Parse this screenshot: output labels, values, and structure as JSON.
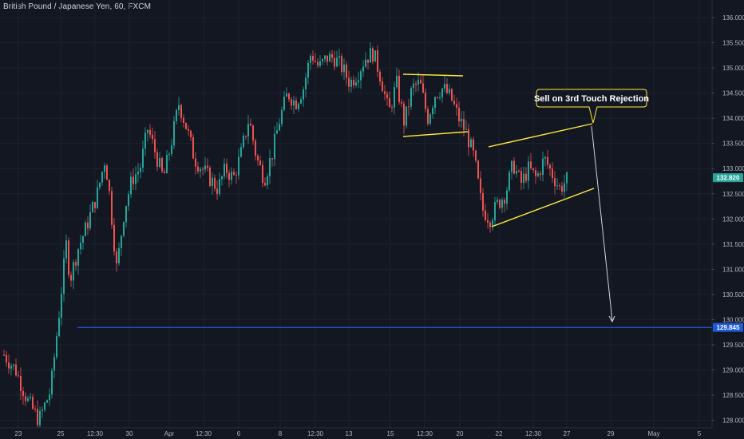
{
  "header": {
    "symbol_title": "British Pound / Japanese Yen, 60, FXCM"
  },
  "colors": {
    "background": "#131722",
    "grid": "#1e2230",
    "axis_text": "#b2b5be",
    "candle_up": "#26a69a",
    "candle_down": "#ef5350",
    "trendline": "#ffeb3b",
    "target_line": "#2962ff",
    "target_badge": "#1e5bd8",
    "last_price_badge": "#26a69a",
    "arrow": "#d1d4dc",
    "callout_bg": "#131722",
    "callout_border": "#ffeb3b"
  },
  "chart_data": {
    "type": "candlestick",
    "ylim": [
      127.85,
      136.35
    ],
    "y_ticks": [
      "136.000",
      "135.500",
      "135.000",
      "134.500",
      "134.000",
      "133.500",
      "133.000",
      "132.500",
      "132.000",
      "131.500",
      "131.000",
      "130.500",
      "130.000",
      "129.500",
      "129.000",
      "128.500",
      "128.000"
    ],
    "x_ticks": [
      "23",
      "25",
      "12:30",
      "30",
      "Apr",
      "12:30",
      "6",
      "8",
      "12:30",
      "13",
      "15",
      "12:30",
      "20",
      "22",
      "12:30",
      "27",
      "29",
      "May",
      "5"
    ],
    "last_price": "132.820",
    "target_price": "129.845",
    "price_path": [
      [
        0,
        129.3
      ],
      [
        3,
        129.0
      ],
      [
        6,
        128.4
      ],
      [
        9,
        128.0
      ],
      [
        12,
        128.6
      ],
      [
        14,
        130.0
      ],
      [
        16,
        131.5
      ],
      [
        17,
        130.8
      ],
      [
        19,
        131.4
      ],
      [
        21,
        131.8
      ],
      [
        24,
        132.5
      ],
      [
        26,
        133.2
      ],
      [
        27,
        132.6
      ],
      [
        29,
        131.0
      ],
      [
        31,
        132.2
      ],
      [
        33,
        132.8
      ],
      [
        35,
        133.0
      ],
      [
        37,
        133.8
      ],
      [
        39,
        133.3
      ],
      [
        41,
        132.8
      ],
      [
        43,
        133.5
      ],
      [
        45,
        134.3
      ],
      [
        47,
        133.8
      ],
      [
        49,
        133.2
      ],
      [
        51,
        133.0
      ],
      [
        53,
        132.8
      ],
      [
        55,
        132.6
      ],
      [
        57,
        133.0
      ],
      [
        59,
        132.8
      ],
      [
        61,
        133.3
      ],
      [
        63,
        134.0
      ],
      [
        65,
        133.2
      ],
      [
        67,
        132.8
      ],
      [
        69,
        133.3
      ],
      [
        71,
        134.0
      ],
      [
        73,
        134.5
      ],
      [
        75,
        134.3
      ],
      [
        77,
        134.6
      ],
      [
        79,
        135.3
      ],
      [
        81,
        135.0
      ],
      [
        83,
        135.2
      ],
      [
        85,
        135.2
      ],
      [
        87,
        135.0
      ],
      [
        89,
        134.7
      ],
      [
        91,
        134.9
      ],
      [
        93,
        135.2
      ],
      [
        95,
        135.3
      ],
      [
        97,
        134.8
      ],
      [
        99,
        134.1
      ],
      [
        101,
        134.7
      ],
      [
        103,
        133.9
      ],
      [
        105,
        134.6
      ],
      [
        107,
        134.7
      ],
      [
        109,
        134.0
      ],
      [
        111,
        134.5
      ],
      [
        113,
        134.6
      ],
      [
        115,
        134.4
      ],
      [
        117,
        134.0
      ],
      [
        119,
        133.7
      ],
      [
        121,
        133.2
      ],
      [
        123,
        132.2
      ],
      [
        125,
        132.0
      ],
      [
        127,
        132.3
      ],
      [
        129,
        132.5
      ],
      [
        131,
        133.1
      ],
      [
        133,
        132.7
      ],
      [
        135,
        133.0
      ],
      [
        137,
        132.8
      ],
      [
        139,
        133.2
      ],
      [
        141,
        132.9
      ],
      [
        143,
        132.6
      ],
      [
        145,
        132.8
      ]
    ]
  },
  "annotations": {
    "callout_text": "Sell on 3rd Touch Rejection"
  }
}
